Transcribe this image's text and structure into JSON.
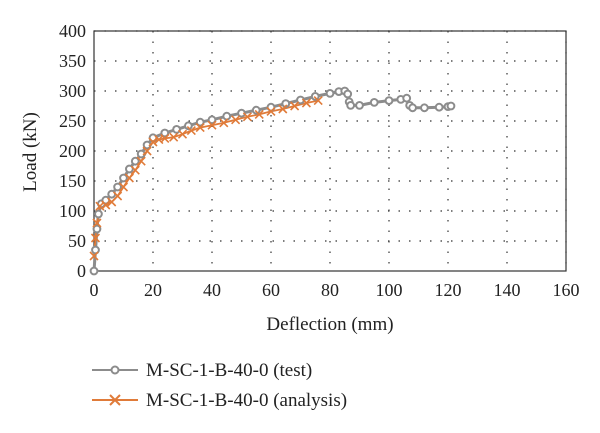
{
  "chart_data": {
    "type": "line",
    "title": "",
    "xlabel": "Deflection (mm)",
    "ylabel": "Load (kN)",
    "xlim": [
      0,
      160
    ],
    "ylim": [
      0,
      400
    ],
    "xticks": [
      0,
      20,
      40,
      60,
      80,
      100,
      120,
      140,
      160
    ],
    "yticks": [
      0,
      50,
      100,
      150,
      200,
      250,
      300,
      350,
      400
    ],
    "grid": "dotted",
    "legend_position": "bottom-left",
    "series": [
      {
        "name": "M-SC-1-B-40-0 (test)",
        "color": "#8c8c8c",
        "marker": "circle",
        "points": [
          [
            0,
            0
          ],
          [
            0.5,
            35
          ],
          [
            1,
            70
          ],
          [
            1.5,
            95
          ],
          [
            2.5,
            112
          ],
          [
            4,
            118
          ],
          [
            6,
            128
          ],
          [
            8,
            140
          ],
          [
            10,
            155
          ],
          [
            12,
            170
          ],
          [
            14,
            183
          ],
          [
            16,
            195
          ],
          [
            18,
            210
          ],
          [
            20,
            222
          ],
          [
            24,
            230
          ],
          [
            28,
            236
          ],
          [
            32,
            242
          ],
          [
            36,
            248
          ],
          [
            40,
            252
          ],
          [
            45,
            258
          ],
          [
            50,
            263
          ],
          [
            55,
            268
          ],
          [
            60,
            273
          ],
          [
            65,
            279
          ],
          [
            70,
            285
          ],
          [
            75,
            291
          ],
          [
            80,
            296
          ],
          [
            83,
            299
          ],
          [
            85,
            300
          ],
          [
            86,
            295
          ],
          [
            86.5,
            282
          ],
          [
            87,
            276
          ],
          [
            90,
            276
          ],
          [
            95,
            281
          ],
          [
            100,
            284
          ],
          [
            104,
            286
          ],
          [
            106,
            288
          ],
          [
            107,
            276
          ],
          [
            108,
            272
          ],
          [
            112,
            272
          ],
          [
            117,
            273
          ],
          [
            120,
            274
          ],
          [
            121,
            275
          ]
        ]
      },
      {
        "name": "M-SC-1-B-40-0 (analysis)",
        "color": "#e07b39",
        "marker": "x",
        "points": [
          [
            0,
            25
          ],
          [
            0.5,
            55
          ],
          [
            1,
            80
          ],
          [
            2,
            108
          ],
          [
            4,
            110
          ],
          [
            6,
            115
          ],
          [
            8,
            125
          ],
          [
            10,
            140
          ],
          [
            12,
            155
          ],
          [
            14,
            168
          ],
          [
            16,
            183
          ],
          [
            18,
            200
          ],
          [
            20,
            215
          ],
          [
            22,
            219
          ],
          [
            24,
            221
          ],
          [
            27,
            223
          ],
          [
            30,
            228
          ],
          [
            33,
            234
          ],
          [
            36,
            239
          ],
          [
            40,
            243
          ],
          [
            44,
            247
          ],
          [
            48,
            252
          ],
          [
            52,
            257
          ],
          [
            56,
            261
          ],
          [
            60,
            266
          ],
          [
            64,
            270
          ],
          [
            68,
            275
          ],
          [
            72,
            280
          ],
          [
            76,
            284
          ]
        ]
      }
    ]
  }
}
